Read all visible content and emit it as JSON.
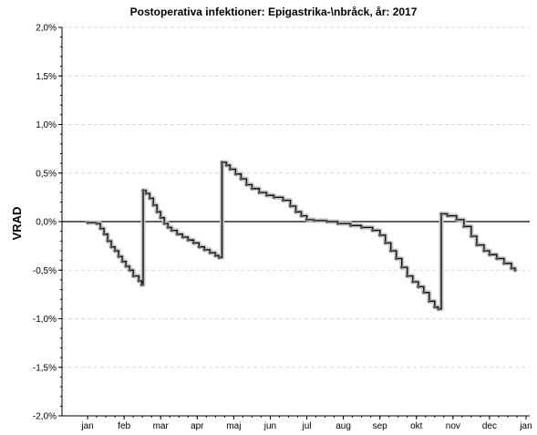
{
  "chart_data": {
    "type": "line",
    "title": "Postoperativa infektioner: Epigastrika-\\nbråck, år: 2017",
    "ylabel": "VRAD",
    "xlabel": "",
    "ylim": [
      -2.0,
      2.0
    ],
    "yticks": [
      {
        "value": 2.0,
        "label": "2,0%"
      },
      {
        "value": 1.5,
        "label": "1,5%"
      },
      {
        "value": 1.0,
        "label": "1,0%"
      },
      {
        "value": 0.5,
        "label": "0,5%"
      },
      {
        "value": 0.0,
        "label": "0,0%"
      },
      {
        "value": -0.5,
        "label": "-0,5%"
      },
      {
        "value": -1.0,
        "label": "-1,0%"
      },
      {
        "value": -1.5,
        "label": "-1,5%"
      },
      {
        "value": -2.0,
        "label": "-2,0%"
      }
    ],
    "xlim": [
      -0.7,
      12.1
    ],
    "xticks": [
      {
        "value": 0,
        "label": "jan"
      },
      {
        "value": 1,
        "label": "feb"
      },
      {
        "value": 2,
        "label": "mar"
      },
      {
        "value": 3,
        "label": "apr"
      },
      {
        "value": 4,
        "label": "maj"
      },
      {
        "value": 5,
        "label": "jun"
      },
      {
        "value": 6,
        "label": "jul"
      },
      {
        "value": 7,
        "label": "aug"
      },
      {
        "value": 8,
        "label": "sep"
      },
      {
        "value": 9,
        "label": "okt"
      },
      {
        "value": 10,
        "label": "nov"
      },
      {
        "value": 11,
        "label": "dec"
      },
      {
        "value": 12,
        "label": "jan"
      }
    ],
    "grid": true,
    "reference_line": 0.0,
    "series": [
      {
        "style": "step",
        "points": [
          [
            0.0,
            -0.01
          ],
          [
            0.25,
            -0.02
          ],
          [
            0.35,
            -0.07
          ],
          [
            0.45,
            -0.13
          ],
          [
            0.55,
            -0.2
          ],
          [
            0.65,
            -0.26
          ],
          [
            0.75,
            -0.3
          ],
          [
            0.85,
            -0.36
          ],
          [
            0.95,
            -0.41
          ],
          [
            1.05,
            -0.46
          ],
          [
            1.15,
            -0.5
          ],
          [
            1.25,
            -0.56
          ],
          [
            1.4,
            -0.61
          ],
          [
            1.48,
            -0.65
          ],
          [
            1.52,
            0.32
          ],
          [
            1.6,
            0.29
          ],
          [
            1.7,
            0.24
          ],
          [
            1.8,
            0.17
          ],
          [
            1.9,
            0.1
          ],
          [
            2.0,
            0.04
          ],
          [
            2.1,
            -0.02
          ],
          [
            2.2,
            -0.06
          ],
          [
            2.3,
            -0.09
          ],
          [
            2.45,
            -0.13
          ],
          [
            2.6,
            -0.16
          ],
          [
            2.75,
            -0.19
          ],
          [
            2.9,
            -0.22
          ],
          [
            3.05,
            -0.26
          ],
          [
            3.2,
            -0.29
          ],
          [
            3.35,
            -0.32
          ],
          [
            3.5,
            -0.35
          ],
          [
            3.6,
            -0.37
          ],
          [
            3.68,
            0.61
          ],
          [
            3.8,
            0.58
          ],
          [
            3.9,
            0.54
          ],
          [
            4.05,
            0.49
          ],
          [
            4.2,
            0.44
          ],
          [
            4.35,
            0.38
          ],
          [
            4.5,
            0.34
          ],
          [
            4.7,
            0.3
          ],
          [
            4.9,
            0.27
          ],
          [
            5.1,
            0.25
          ],
          [
            5.35,
            0.22
          ],
          [
            5.55,
            0.16
          ],
          [
            5.7,
            0.1
          ],
          [
            5.85,
            0.06
          ],
          [
            6.0,
            0.02
          ],
          [
            6.2,
            0.01
          ],
          [
            6.55,
            0.0
          ],
          [
            6.85,
            -0.02
          ],
          [
            7.2,
            -0.04
          ],
          [
            7.5,
            -0.06
          ],
          [
            7.8,
            -0.09
          ],
          [
            8.0,
            -0.14
          ],
          [
            8.15,
            -0.22
          ],
          [
            8.3,
            -0.3
          ],
          [
            8.45,
            -0.38
          ],
          [
            8.6,
            -0.47
          ],
          [
            8.75,
            -0.56
          ],
          [
            8.9,
            -0.62
          ],
          [
            9.05,
            -0.67
          ],
          [
            9.2,
            -0.73
          ],
          [
            9.35,
            -0.82
          ],
          [
            9.5,
            -0.88
          ],
          [
            9.6,
            -0.9
          ],
          [
            9.68,
            0.08
          ],
          [
            9.85,
            0.06
          ],
          [
            10.1,
            0.02
          ],
          [
            10.3,
            -0.05
          ],
          [
            10.5,
            -0.15
          ],
          [
            10.65,
            -0.24
          ],
          [
            10.85,
            -0.3
          ],
          [
            11.0,
            -0.34
          ],
          [
            11.2,
            -0.38
          ],
          [
            11.4,
            -0.43
          ],
          [
            11.6,
            -0.48
          ],
          [
            11.7,
            -0.5
          ]
        ]
      }
    ]
  }
}
